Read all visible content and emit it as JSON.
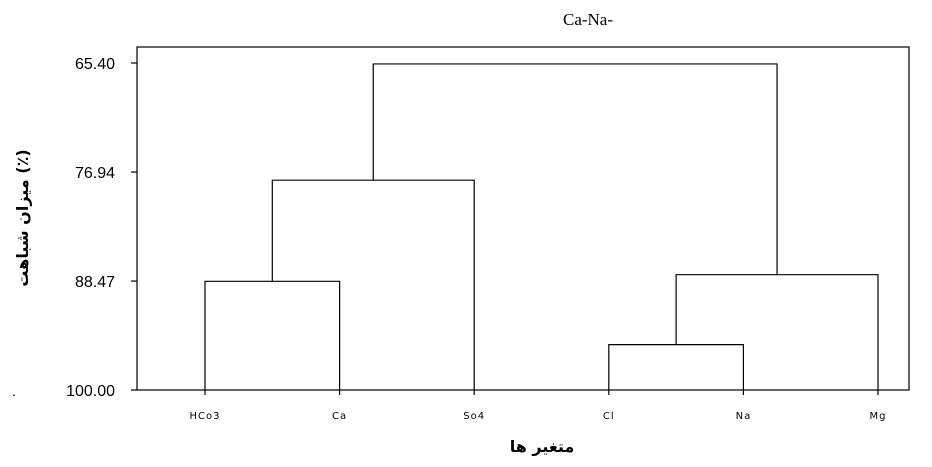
{
  "chart_data": {
    "type": "dendrogram",
    "title": "Ca-Na-",
    "ylabel": "میزان شباهت (٪)",
    "xlabel": "متغیر ها",
    "y_axis": {
      "ticks": [
        65.4,
        76.94,
        88.47,
        100.0
      ],
      "tick_labels": [
        "65.40",
        "76.94",
        "88.47",
        "100.00"
      ],
      "range": [
        65.4,
        100.0
      ],
      "top": 65.4,
      "bottom": 100.0
    },
    "leaves": [
      "HCo3",
      "Ca",
      "So4",
      "Cl",
      "Na",
      "Mg"
    ],
    "merges": [
      {
        "left": "HCo3",
        "right": "Ca",
        "similarity": 88.5
      },
      {
        "left": "Cl",
        "right": "Na",
        "similarity": 95.2
      },
      {
        "left": "HCo3+Ca",
        "right": "So4",
        "similarity": 77.8
      },
      {
        "left": "Cl+Na",
        "right": "Mg",
        "similarity": 87.8
      },
      {
        "left": "HCo3+Ca+So4",
        "right": "Cl+Na+Mg",
        "similarity": 65.5
      }
    ]
  }
}
